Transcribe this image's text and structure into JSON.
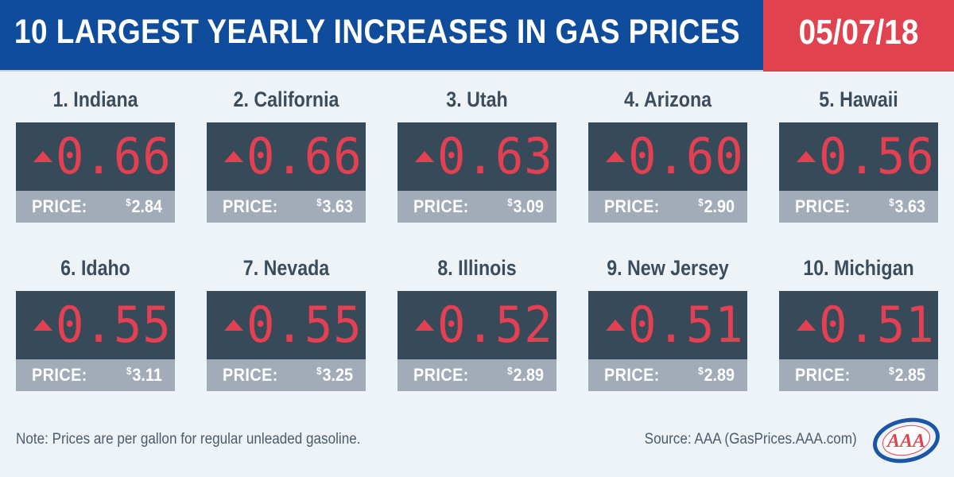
{
  "header": {
    "title": "10 LARGEST YEARLY INCREASES IN GAS PRICES",
    "date": "05/07/18"
  },
  "items": [
    {
      "label": "1. Indiana",
      "increase": "0.66",
      "price_label": "PRICE:",
      "currency": "$",
      "price": "2.84"
    },
    {
      "label": "2. California",
      "increase": "0.66",
      "price_label": "PRICE:",
      "currency": "$",
      "price": "3.63"
    },
    {
      "label": "3. Utah",
      "increase": "0.63",
      "price_label": "PRICE:",
      "currency": "$",
      "price": "3.09"
    },
    {
      "label": "4. Arizona",
      "increase": "0.60",
      "price_label": "PRICE:",
      "currency": "$",
      "price": "2.90"
    },
    {
      "label": "5. Hawaii",
      "increase": "0.56",
      "price_label": "PRICE:",
      "currency": "$",
      "price": "3.63"
    },
    {
      "label": "6. Idaho",
      "increase": "0.55",
      "price_label": "PRICE:",
      "currency": "$",
      "price": "3.11"
    },
    {
      "label": "7. Nevada",
      "increase": "0.55",
      "price_label": "PRICE:",
      "currency": "$",
      "price": "3.25"
    },
    {
      "label": "8. Illinois",
      "increase": "0.52",
      "price_label": "PRICE:",
      "currency": "$",
      "price": "2.89"
    },
    {
      "label": "9. New Jersey",
      "increase": "0.51",
      "price_label": "PRICE:",
      "currency": "$",
      "price": "2.89"
    },
    {
      "label": "10. Michigan",
      "increase": "0.51",
      "price_label": "PRICE:",
      "currency": "$",
      "price": "2.85"
    }
  ],
  "footer": {
    "note": "Note: Prices are per gallon for regular unleaded gasoline.",
    "source": "Source: AAA (GasPrices.AAA.com)",
    "logo_text": "AAA"
  },
  "colors": {
    "header_blue": "#0f4d9c",
    "date_red": "#e0434f",
    "display_dark": "#374a59",
    "digit_red": "#e34152",
    "price_strip": "#a2acb8",
    "background": "#eef3f8"
  },
  "icons": {
    "increase": "up-triangle-icon",
    "logo": "aaa-logo"
  }
}
